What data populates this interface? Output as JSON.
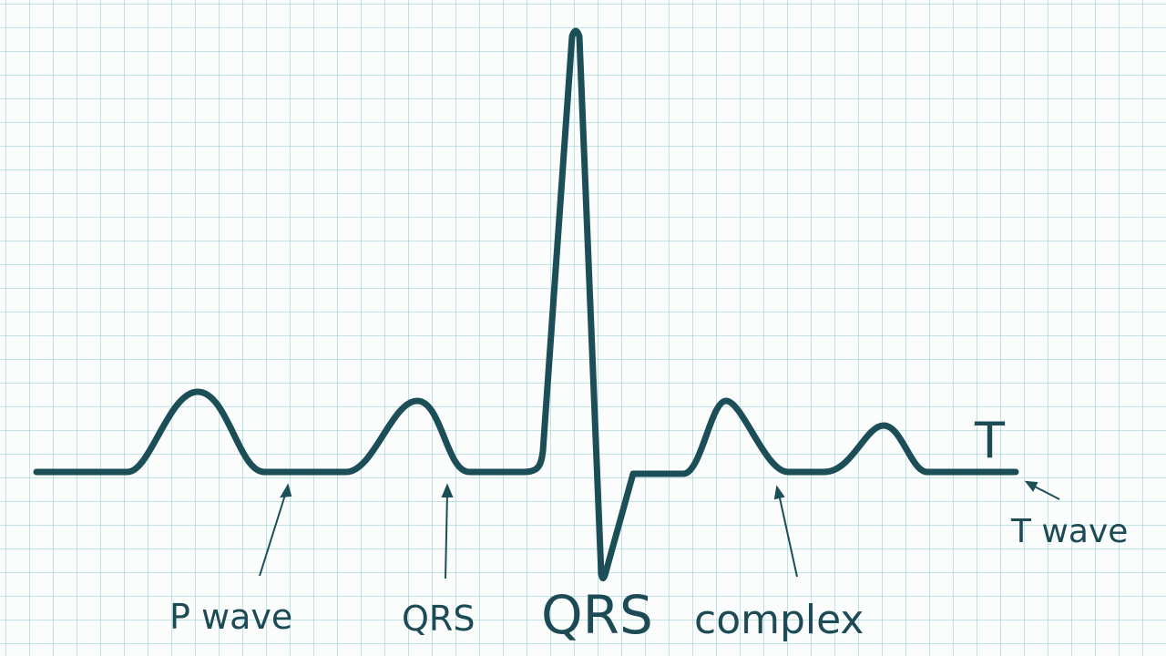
{
  "labels": [
    "T",
    "P wave",
    "QRS",
    "QRS",
    "complex",
    "T wave"
  ]
}
